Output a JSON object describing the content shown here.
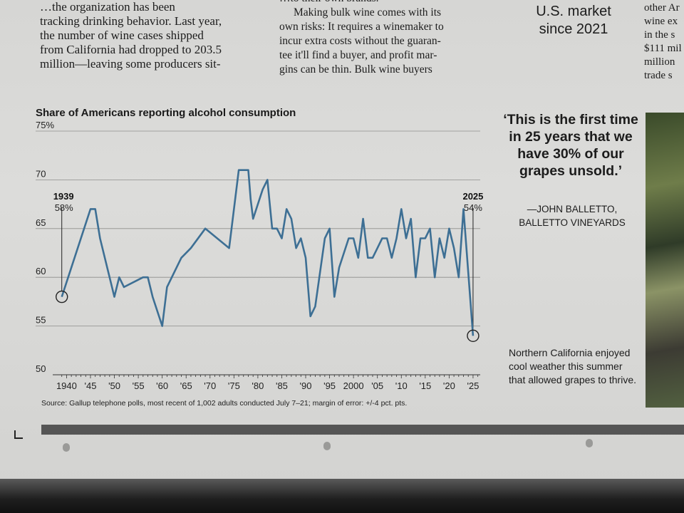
{
  "article": {
    "col1": [
      "…the organization has been",
      "tracking drinking behavior. Last year,",
      "the number of wine cases shipped",
      "from California had dropped to 203.5",
      "million—leaving some producers sit-"
    ],
    "col2": [
      "…to their own brands.",
      "Making bulk wine comes with its",
      "own risks: It requires a winemaker to",
      "incur extra costs without the guaran-",
      "tee it'll find a buyer, and profit mar-",
      "gins can be thin. Bulk wine buyers"
    ],
    "col3": [
      "U.S. market",
      "since 2021"
    ],
    "col4": [
      "other Ar",
      "wine ex",
      "in the s",
      "$111 mil",
      "million",
      "trade s"
    ]
  },
  "sidebar": {
    "quote": "‘This is the first time in 25 years that we have 30% of our grapes unsold.’",
    "attribution_1": "—JOHN BALLETTO,",
    "attribution_2": "BALLETTO VINEYARDS",
    "caption": "Northern California enjoyed cool weather this summer that allowed grapes to thrive."
  },
  "chart_data": {
    "type": "line",
    "title": "Share of Americans reporting alcohol consumption",
    "source": "Source: Gallup telephone polls, most recent of 1,002 adults conducted July 7–21; margin of error: +/-4 pct. pts.",
    "ylim": [
      50,
      75
    ],
    "y_ticks": [
      50,
      55,
      60,
      65,
      70,
      75
    ],
    "y_tick_labels": [
      "50",
      "55",
      "60",
      "65",
      "70",
      "75%"
    ],
    "x_tick_labels": [
      {
        "x": 1940,
        "label": "1940"
      },
      {
        "x": 1945,
        "label": "'45"
      },
      {
        "x": 1950,
        "label": "'50"
      },
      {
        "x": 1955,
        "label": "'55"
      },
      {
        "x": 1960,
        "label": "'60"
      },
      {
        "x": 1965,
        "label": "'65"
      },
      {
        "x": 1970,
        "label": "'70"
      },
      {
        "x": 1975,
        "label": "'75"
      },
      {
        "x": 1980,
        "label": "'80"
      },
      {
        "x": 1985,
        "label": "'85"
      },
      {
        "x": 1990,
        "label": "'90"
      },
      {
        "x": 1995,
        "label": "'95"
      },
      {
        "x": 2000,
        "label": "2000"
      },
      {
        "x": 2005,
        "label": "'05"
      },
      {
        "x": 2010,
        "label": "'10"
      },
      {
        "x": 2015,
        "label": "'15"
      },
      {
        "x": 2020,
        "label": "'20"
      },
      {
        "x": 2025,
        "label": "'25"
      }
    ],
    "x_range": [
      1938,
      2026.5
    ],
    "series": [
      {
        "name": "Share reporting alcohol consumption",
        "color": "#3d6f94",
        "x": [
          1939,
          1945,
          1946,
          1947,
          1949,
          1950,
          1951,
          1952,
          1956,
          1957,
          1958,
          1960,
          1961,
          1964,
          1966,
          1969,
          1974,
          1976,
          1977,
          1978,
          1978.5,
          1979,
          1981,
          1982,
          1983,
          1984,
          1985,
          1986,
          1987,
          1988,
          1989,
          1990,
          1991,
          1992,
          1994,
          1995,
          1996,
          1997,
          1999,
          2000,
          2001,
          2002,
          2003,
          2004,
          2005,
          2006,
          2007,
          2008,
          2009,
          2010,
          2011,
          2012,
          2013,
          2014,
          2015,
          2016,
          2017,
          2018,
          2019,
          2020,
          2021,
          2022,
          2023,
          2025
        ],
        "values": [
          58,
          67,
          67,
          64,
          60,
          58,
          60,
          59,
          60,
          60,
          58,
          55,
          59,
          62,
          63,
          65,
          63,
          71,
          71,
          71,
          68,
          66,
          69,
          70,
          65,
          65,
          64,
          67,
          66,
          63,
          64,
          62,
          56,
          57,
          64,
          65,
          58,
          61,
          64,
          64,
          62,
          66,
          62,
          62,
          63,
          64,
          64,
          62,
          64,
          67,
          64,
          66,
          60,
          64,
          64,
          65,
          60,
          64,
          62,
          65,
          63,
          60,
          67,
          54
        ]
      }
    ],
    "annotations": [
      {
        "year_label": "1939",
        "value_label": "58%",
        "x": 1939,
        "y": 58
      },
      {
        "year_label": "2025",
        "value_label": "54%",
        "x": 2025,
        "y": 54
      }
    ]
  }
}
